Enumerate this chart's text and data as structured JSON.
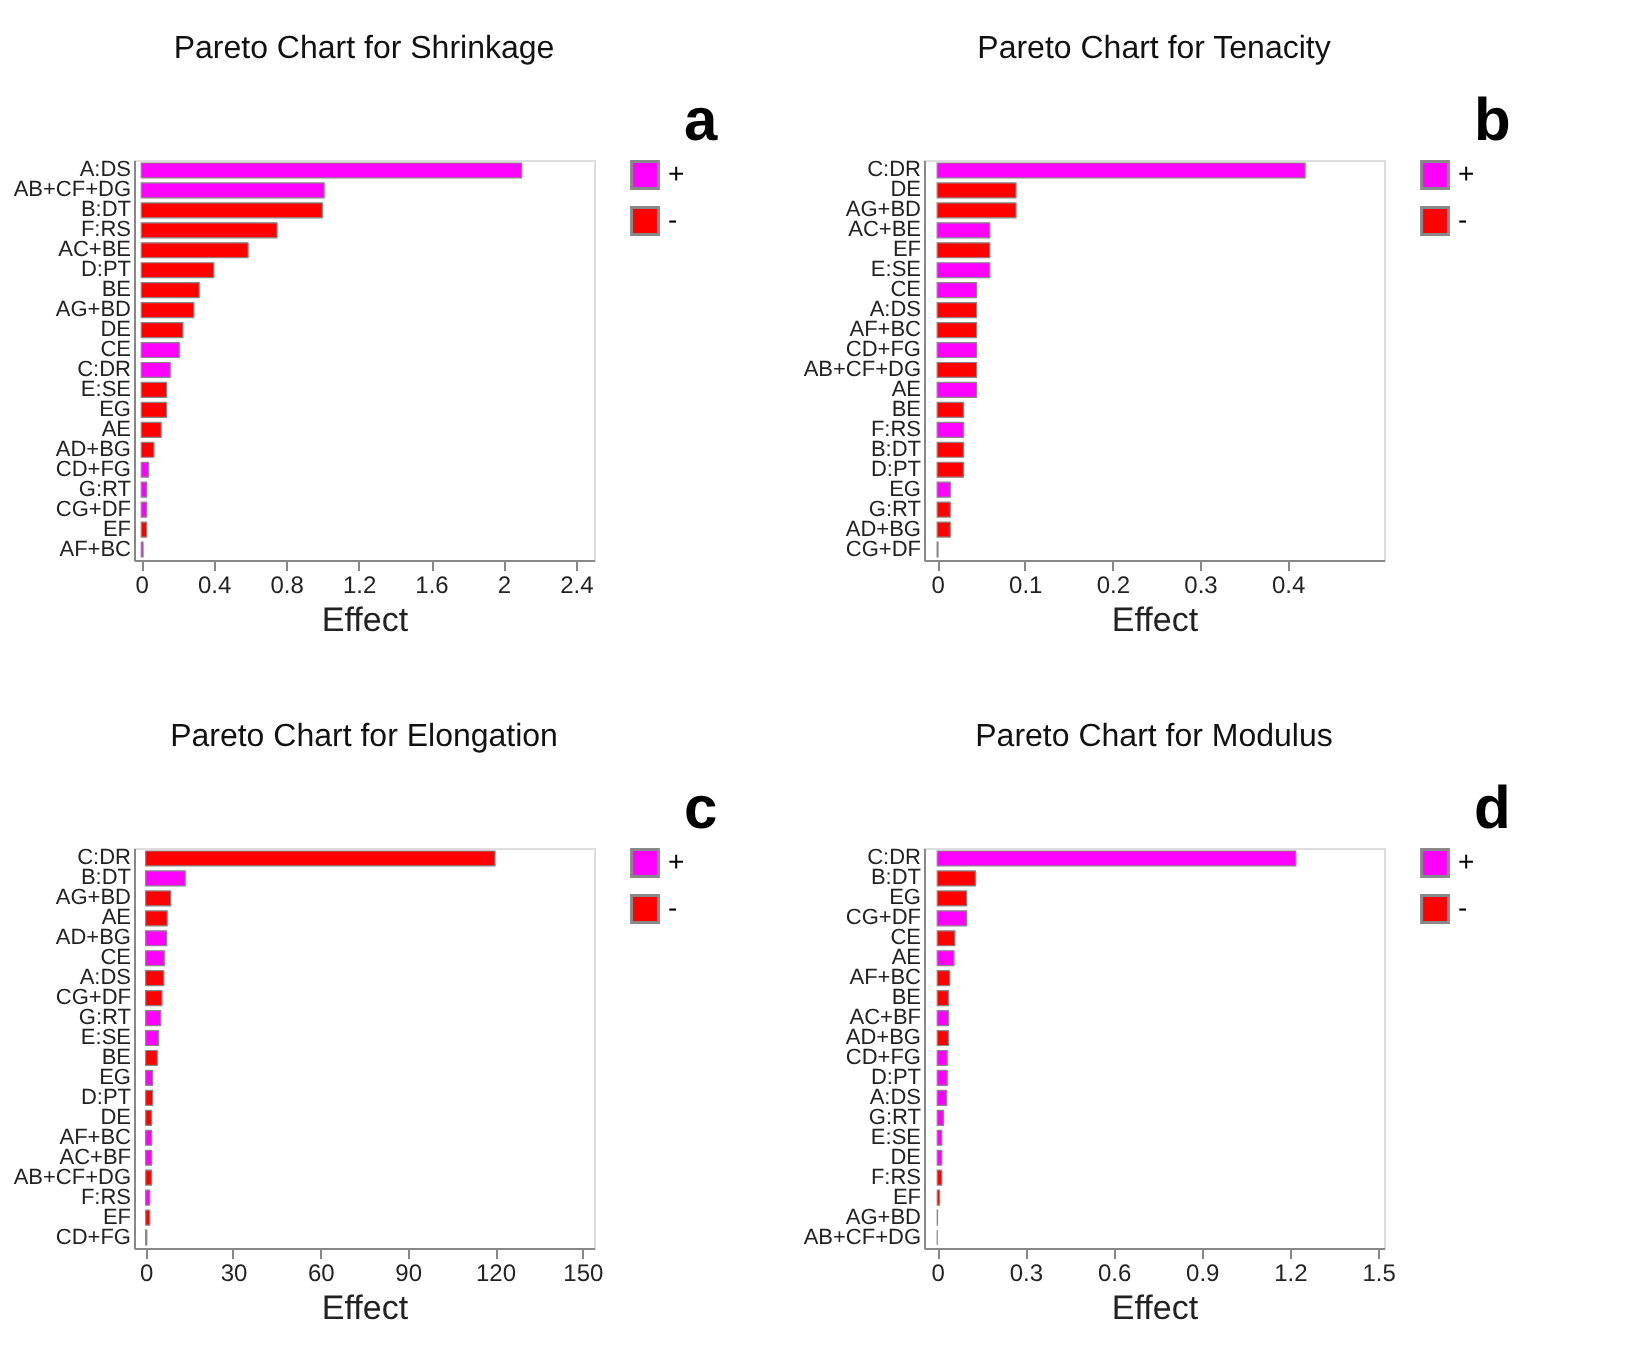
{
  "chart_data": [
    {
      "type": "bar",
      "orientation": "horizontal",
      "title": "Pareto Chart for Shrinkage",
      "xlabel": "Effect",
      "annotations": [
        "a"
      ],
      "legend": "right",
      "grid": false,
      "categories": [
        "A:DS",
        "AB+CF+DG",
        "B:DT",
        "F:RS",
        "AC+BE",
        "D:PT",
        "BE",
        "AG+BD",
        "DE",
        "CE",
        "C:DR",
        "E:SE",
        "EG",
        "AE",
        "AD+BG",
        "CD+FG",
        "G:RT",
        "CG+DF",
        "EF",
        "AF+BC"
      ],
      "xlim": [
        -0.04,
        2.5
      ],
      "xticks": [
        0,
        0.4,
        0.8,
        1.2,
        1.6,
        2,
        2.4
      ],
      "series": [
        {
          "name": "+",
          "color": "#ff00ff",
          "values": [
            2.1,
            1.01,
            null,
            null,
            null,
            null,
            null,
            null,
            null,
            0.21,
            0.16,
            null,
            null,
            null,
            null,
            0.04,
            0.03,
            0.03,
            null,
            0.01
          ]
        },
        {
          "name": "-",
          "color": "#ff0000",
          "values": [
            null,
            null,
            1.0,
            0.75,
            0.59,
            0.4,
            0.32,
            0.29,
            0.23,
            null,
            null,
            0.14,
            0.14,
            0.11,
            0.07,
            null,
            null,
            null,
            0.03,
            null
          ]
        }
      ]
    },
    {
      "type": "bar",
      "orientation": "horizontal",
      "title": "Pareto Chart for Tenacity",
      "xlabel": "Effect",
      "annotations": [
        "b"
      ],
      "legend": "right",
      "grid": false,
      "categories": [
        "C:DR",
        "DE",
        "AG+BD",
        "AC+BE",
        "EF",
        "E:SE",
        "CE",
        "A:DS",
        "AF+BC",
        "CD+FG",
        "AB+CF+DG",
        "AE",
        "BE",
        "F:RS",
        "B:DT",
        "D:PT",
        "EG",
        "G:RT",
        "AD+BG",
        "CG+DF"
      ],
      "xlim": [
        -0.015,
        0.51
      ],
      "xticks": [
        0,
        0.1,
        0.2,
        0.3,
        0.4
      ],
      "series": [
        {
          "name": "+",
          "color": "#ff00ff",
          "values": [
            0.42,
            null,
            null,
            0.06,
            null,
            0.06,
            0.045,
            null,
            null,
            0.045,
            null,
            0.045,
            null,
            0.03,
            null,
            null,
            0.015,
            null,
            null,
            0.001
          ]
        },
        {
          "name": "-",
          "color": "#ff0000",
          "values": [
            null,
            0.09,
            0.09,
            null,
            0.06,
            null,
            null,
            0.045,
            0.045,
            null,
            0.045,
            null,
            0.03,
            null,
            0.03,
            0.03,
            null,
            0.015,
            0.015,
            null
          ]
        }
      ]
    },
    {
      "type": "bar",
      "orientation": "horizontal",
      "title": "Pareto Chart for Elongation",
      "xlabel": "Effect",
      "annotations": [
        "c"
      ],
      "legend": "right",
      "grid": false,
      "categories": [
        "C:DR",
        "B:DT",
        "AG+BD",
        "AE",
        "AD+BG",
        "CE",
        "A:DS",
        "CG+DF",
        "G:RT",
        "E:SE",
        "BE",
        "EG",
        "D:PT",
        "DE",
        "AF+BC",
        "AC+BF",
        "AB+CF+DG",
        "F:RS",
        "EF",
        "CD+FG"
      ],
      "xlim": [
        -4,
        154
      ],
      "xticks": [
        0,
        30,
        60,
        90,
        120,
        150
      ],
      "series": [
        {
          "name": "+",
          "color": "#ff00ff",
          "values": [
            null,
            13.6,
            null,
            null,
            7.2,
            6.4,
            null,
            null,
            5.2,
            4.4,
            null,
            2.4,
            null,
            null,
            2.0,
            2.0,
            null,
            1.4,
            null,
            0.4
          ]
        },
        {
          "name": "-",
          "color": "#ff0000",
          "values": [
            120,
            null,
            8.6,
            7.4,
            null,
            null,
            6.2,
            5.6,
            null,
            null,
            4.0,
            null,
            2.4,
            2.0,
            null,
            null,
            2.0,
            null,
            1.4,
            null
          ]
        }
      ]
    },
    {
      "type": "bar",
      "orientation": "horizontal",
      "title": "Pareto Chart for Modulus",
      "xlabel": "Effect",
      "annotations": [
        "d"
      ],
      "legend": "right",
      "grid": false,
      "categories": [
        "C:DR",
        "B:DT",
        "EG",
        "CG+DF",
        "CE",
        "AE",
        "AF+BC",
        "BE",
        "AC+BF",
        "AD+BG",
        "CD+FG",
        "D:PT",
        "A:DS",
        "G:RT",
        "E:SE",
        "DE",
        "F:RS",
        "EF",
        "AG+BD",
        "AB+CF+DG"
      ],
      "xlim": [
        -0.045,
        1.52
      ],
      "xticks": [
        0,
        0.3,
        0.6,
        0.9,
        1.2,
        1.5
      ],
      "series": [
        {
          "name": "+",
          "color": "#ff00ff",
          "values": [
            1.22,
            null,
            null,
            0.1,
            null,
            0.057,
            null,
            null,
            0.038,
            null,
            0.034,
            0.034,
            0.032,
            0.021,
            0.015,
            0.015,
            null,
            null,
            0.001,
            0
          ]
        },
        {
          "name": "-",
          "color": "#ff0000",
          "values": [
            null,
            0.13,
            0.1,
            null,
            0.06,
            null,
            0.042,
            0.038,
            null,
            0.038,
            null,
            null,
            null,
            null,
            null,
            null,
            0.015,
            0.008,
            null,
            null
          ]
        }
      ]
    }
  ]
}
